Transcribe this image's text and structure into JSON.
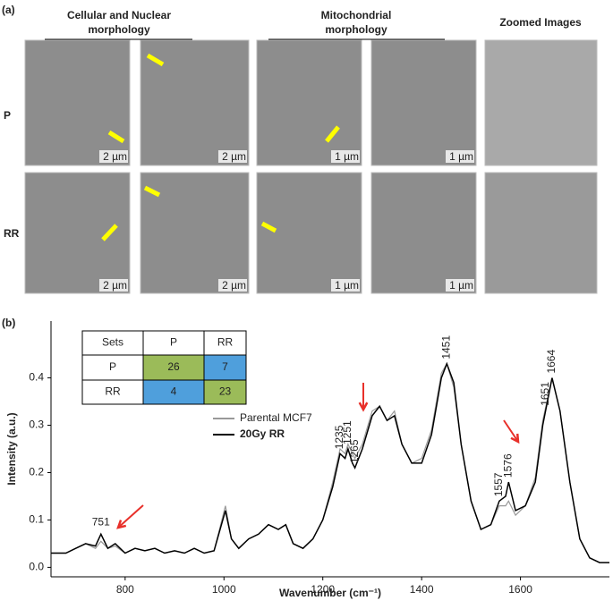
{
  "panel_a": {
    "label": "(a)",
    "headers": [
      "Cellular and Nuclear morphology",
      "Mitochondrial morphology",
      "Zoomed Images"
    ],
    "rows": [
      "P",
      "RR"
    ],
    "scale_bars": [
      [
        "2 µm",
        "2 µm",
        "1 µm",
        "1 µm"
      ],
      [
        "2 µm",
        "2 µm",
        "1 µm",
        "1 µm"
      ]
    ]
  },
  "chart_data": {
    "type": "line",
    "label": "(b)",
    "xlabel": "Wavenumber (cm⁻¹)",
    "ylabel": "Intensity (a.u.)",
    "xlim": [
      650,
      1780
    ],
    "ylim": [
      -0.02,
      0.52
    ],
    "xticks": [
      800,
      1000,
      1200,
      1400,
      1600
    ],
    "yticks": [
      {
        "value": 0,
        "label": "0.0"
      },
      0.1,
      0.2,
      0.3,
      0.4
    ],
    "x": [
      650,
      680,
      700,
      720,
      740,
      751,
      765,
      780,
      800,
      820,
      840,
      860,
      880,
      900,
      920,
      940,
      960,
      980,
      1003,
      1015,
      1030,
      1050,
      1070,
      1090,
      1110,
      1125,
      1140,
      1160,
      1180,
      1200,
      1220,
      1235,
      1245,
      1251,
      1260,
      1265,
      1280,
      1300,
      1315,
      1330,
      1345,
      1360,
      1380,
      1400,
      1420,
      1440,
      1451,
      1465,
      1480,
      1500,
      1520,
      1540,
      1557,
      1570,
      1576,
      1590,
      1610,
      1630,
      1645,
      1664,
      1680,
      1700,
      1720,
      1740,
      1760,
      1780
    ],
    "series": [
      {
        "name": "Parental MCF7",
        "color": "#999999",
        "values": [
          0.03,
          0.03,
          0.04,
          0.05,
          0.04,
          0.055,
          0.04,
          0.045,
          0.03,
          0.04,
          0.035,
          0.04,
          0.03,
          0.035,
          0.03,
          0.04,
          0.03,
          0.035,
          0.13,
          0.06,
          0.04,
          0.06,
          0.07,
          0.09,
          0.08,
          0.09,
          0.05,
          0.04,
          0.06,
          0.1,
          0.18,
          0.25,
          0.24,
          0.26,
          0.24,
          0.23,
          0.26,
          0.33,
          0.34,
          0.31,
          0.33,
          0.26,
          0.22,
          0.23,
          0.29,
          0.41,
          0.43,
          0.38,
          0.26,
          0.14,
          0.08,
          0.09,
          0.13,
          0.13,
          0.14,
          0.11,
          0.13,
          0.19,
          0.31,
          0.4,
          0.33,
          0.18,
          0.06,
          0.02,
          0.01,
          0.01
        ]
      },
      {
        "name": "20Gy RR",
        "color": "#000000",
        "values": [
          0.03,
          0.03,
          0.04,
          0.05,
          0.045,
          0.07,
          0.04,
          0.05,
          0.03,
          0.04,
          0.035,
          0.04,
          0.03,
          0.035,
          0.03,
          0.04,
          0.03,
          0.035,
          0.12,
          0.06,
          0.04,
          0.06,
          0.07,
          0.09,
          0.08,
          0.09,
          0.05,
          0.04,
          0.06,
          0.1,
          0.17,
          0.24,
          0.23,
          0.25,
          0.22,
          0.21,
          0.25,
          0.32,
          0.34,
          0.31,
          0.32,
          0.26,
          0.22,
          0.22,
          0.28,
          0.4,
          0.43,
          0.39,
          0.26,
          0.14,
          0.08,
          0.09,
          0.14,
          0.15,
          0.18,
          0.12,
          0.13,
          0.18,
          0.3,
          0.4,
          0.33,
          0.18,
          0.06,
          0.02,
          0.01,
          0.01
        ]
      }
    ],
    "peak_labels": [
      751,
      1235,
      1251,
      1265,
      1451,
      1557,
      1576,
      1651,
      1664
    ],
    "table": {
      "header": [
        "Sets",
        "P",
        "RR"
      ],
      "rows": [
        [
          "P",
          26,
          7
        ],
        [
          "RR",
          4,
          23
        ]
      ]
    }
  }
}
